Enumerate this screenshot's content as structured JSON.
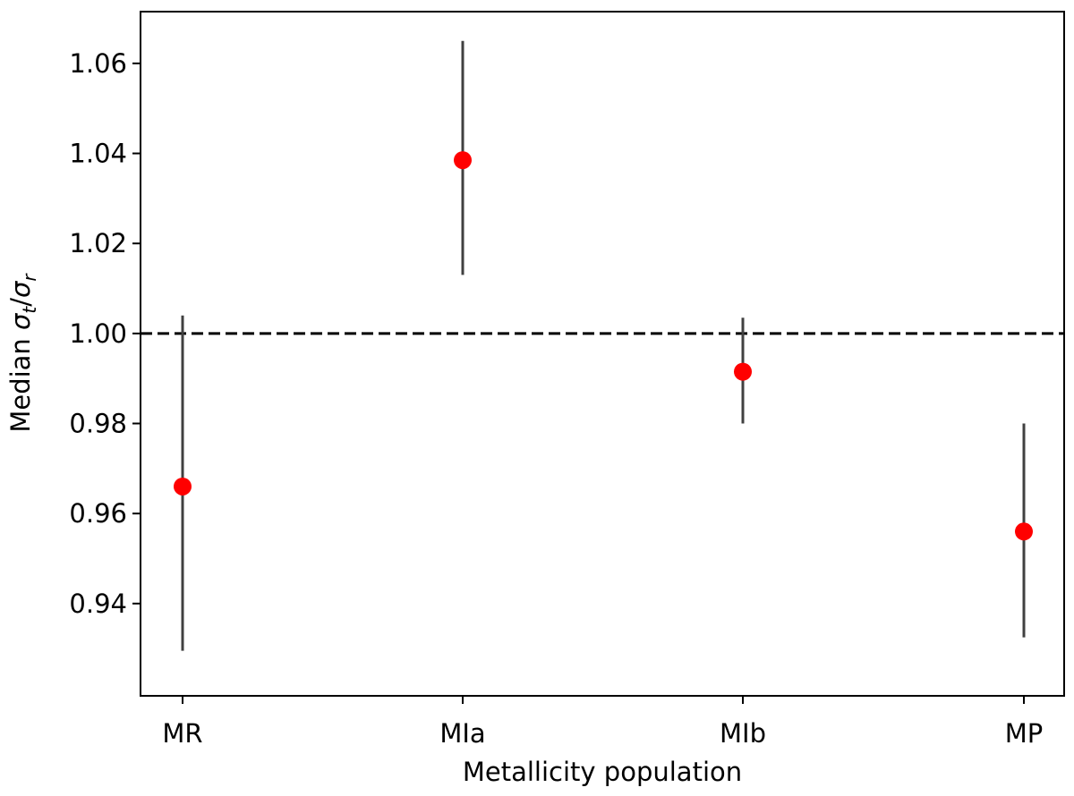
{
  "chart_data": {
    "type": "scatter",
    "title": "",
    "xlabel": "Metallicity population",
    "ylabel": "Median σt/σr",
    "ylabel_parts": {
      "prefix": "Median ",
      "num": "σ",
      "num_sub": "t",
      "slash": "/",
      "den": "σ",
      "den_sub": "r"
    },
    "categories": [
      "MR",
      "MIa",
      "MIb",
      "MP"
    ],
    "values": [
      0.966,
      1.0385,
      0.9915,
      0.956
    ],
    "error_low": [
      0.9295,
      1.013,
      0.98,
      0.9325
    ],
    "error_high": [
      1.004,
      1.065,
      1.0035,
      0.98
    ],
    "reference_line": 1.0,
    "yticks": [
      0.94,
      0.96,
      0.98,
      1.0,
      1.02,
      1.04,
      1.06
    ],
    "ytick_labels": [
      "0.94",
      "0.96",
      "0.98",
      "1.00",
      "1.02",
      "1.04",
      "1.06"
    ],
    "ylim": [
      0.9195,
      1.0715
    ],
    "grid": false,
    "colors": {
      "point": "#ff0000",
      "errorbar": "#404040",
      "reference": "#000000",
      "axes": "#000000"
    }
  }
}
